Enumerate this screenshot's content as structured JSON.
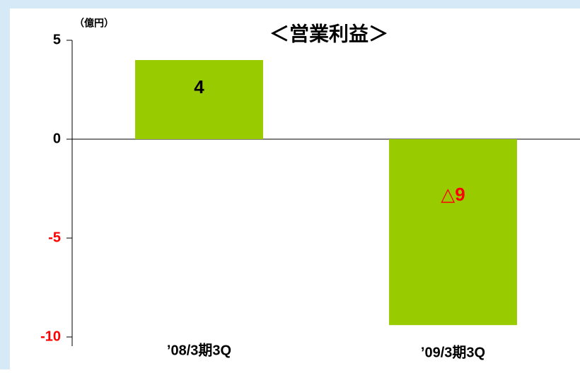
{
  "chart_data": {
    "type": "bar",
    "title": "＜営業利益＞",
    "y_axis_label": "（億円）",
    "categories": [
      "’08/3期3Q",
      "’09/3期3Q"
    ],
    "values": [
      4,
      -9.4
    ],
    "value_labels": [
      "4",
      "△9"
    ],
    "color": "#99cc00",
    "label_color": "#000000",
    "negative_color": "#ff0000",
    "ylim": [
      -10,
      5
    ],
    "yticks": [
      -10,
      -5,
      0,
      5
    ],
    "grid": false
  }
}
